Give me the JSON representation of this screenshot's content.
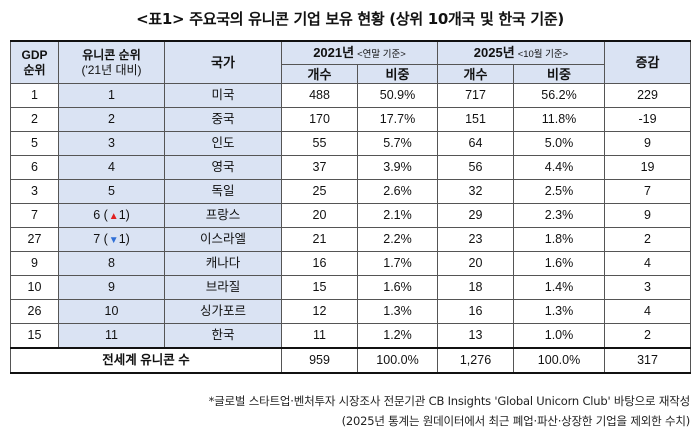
{
  "title": "<표1> 주요국의 유니콘 기업 보유 현황 (상위 10개국 및 한국 기준)",
  "headers": {
    "gdp_rank": "GDP\n순위",
    "unicorn_rank": "유니콘 순위",
    "unicorn_rank_sub": "('21년 대비)",
    "country": "국가",
    "year2021": "2021년",
    "year2021_note": "<연말 기준>",
    "year2025": "2025년",
    "year2025_note": "<10월 기준>",
    "count": "개수",
    "share": "비중",
    "change": "증감"
  },
  "rows": [
    {
      "gdp": "1",
      "rank": "1",
      "arrow": "",
      "arrow_num": "",
      "country": "미국",
      "c21": "488",
      "s21": "50.9%",
      "c25": "717",
      "s25": "56.2%",
      "chg": "229"
    },
    {
      "gdp": "2",
      "rank": "2",
      "arrow": "",
      "arrow_num": "",
      "country": "중국",
      "c21": "170",
      "s21": "17.7%",
      "c25": "151",
      "s25": "11.8%",
      "chg": "-19"
    },
    {
      "gdp": "5",
      "rank": "3",
      "arrow": "",
      "arrow_num": "",
      "country": "인도",
      "c21": "55",
      "s21": "5.7%",
      "c25": "64",
      "s25": "5.0%",
      "chg": "9"
    },
    {
      "gdp": "6",
      "rank": "4",
      "arrow": "",
      "arrow_num": "",
      "country": "영국",
      "c21": "37",
      "s21": "3.9%",
      "c25": "56",
      "s25": "4.4%",
      "chg": "19"
    },
    {
      "gdp": "3",
      "rank": "5",
      "arrow": "",
      "arrow_num": "",
      "country": "독일",
      "c21": "25",
      "s21": "2.6%",
      "c25": "32",
      "s25": "2.5%",
      "chg": "7"
    },
    {
      "gdp": "7",
      "rank": "6 (",
      "arrow": "▲",
      "arrow_num": "1)",
      "arrow_color": "#e02020",
      "country": "프랑스",
      "c21": "20",
      "s21": "2.1%",
      "c25": "29",
      "s25": "2.3%",
      "chg": "9"
    },
    {
      "gdp": "27",
      "rank": "7 (",
      "arrow": "▼",
      "arrow_num": "1)",
      "arrow_color": "#2f6fd6",
      "country": "이스라엘",
      "c21": "21",
      "s21": "2.2%",
      "c25": "23",
      "s25": "1.8%",
      "chg": "2"
    },
    {
      "gdp": "9",
      "rank": "8",
      "arrow": "",
      "arrow_num": "",
      "country": "캐나다",
      "c21": "16",
      "s21": "1.7%",
      "c25": "20",
      "s25": "1.6%",
      "chg": "4"
    },
    {
      "gdp": "10",
      "rank": "9",
      "arrow": "",
      "arrow_num": "",
      "country": "브라질",
      "c21": "15",
      "s21": "1.6%",
      "c25": "18",
      "s25": "1.4%",
      "chg": "3"
    },
    {
      "gdp": "26",
      "rank": "10",
      "arrow": "",
      "arrow_num": "",
      "country": "싱가포르",
      "c21": "12",
      "s21": "1.3%",
      "c25": "16",
      "s25": "1.3%",
      "chg": "4"
    },
    {
      "gdp": "15",
      "rank": "11",
      "arrow": "",
      "arrow_num": "",
      "country": "한국",
      "c21": "11",
      "s21": "1.2%",
      "c25": "13",
      "s25": "1.0%",
      "chg": "2"
    }
  ],
  "total": {
    "label": "전세계 유니콘 수",
    "c21": "959",
    "s21": "100.0%",
    "c25": "1,276",
    "s25": "100.0%",
    "chg": "317"
  },
  "footnotes": [
    "*글로벌 스타트업·벤처투자 시장조사 전문기관 CB Insights 'Global Unicorn Club' 바탕으로 재작성",
    "(2025년 통계는 원데이터에서 최근 폐업·파산·상장한 기업을 제외한 수치)"
  ]
}
